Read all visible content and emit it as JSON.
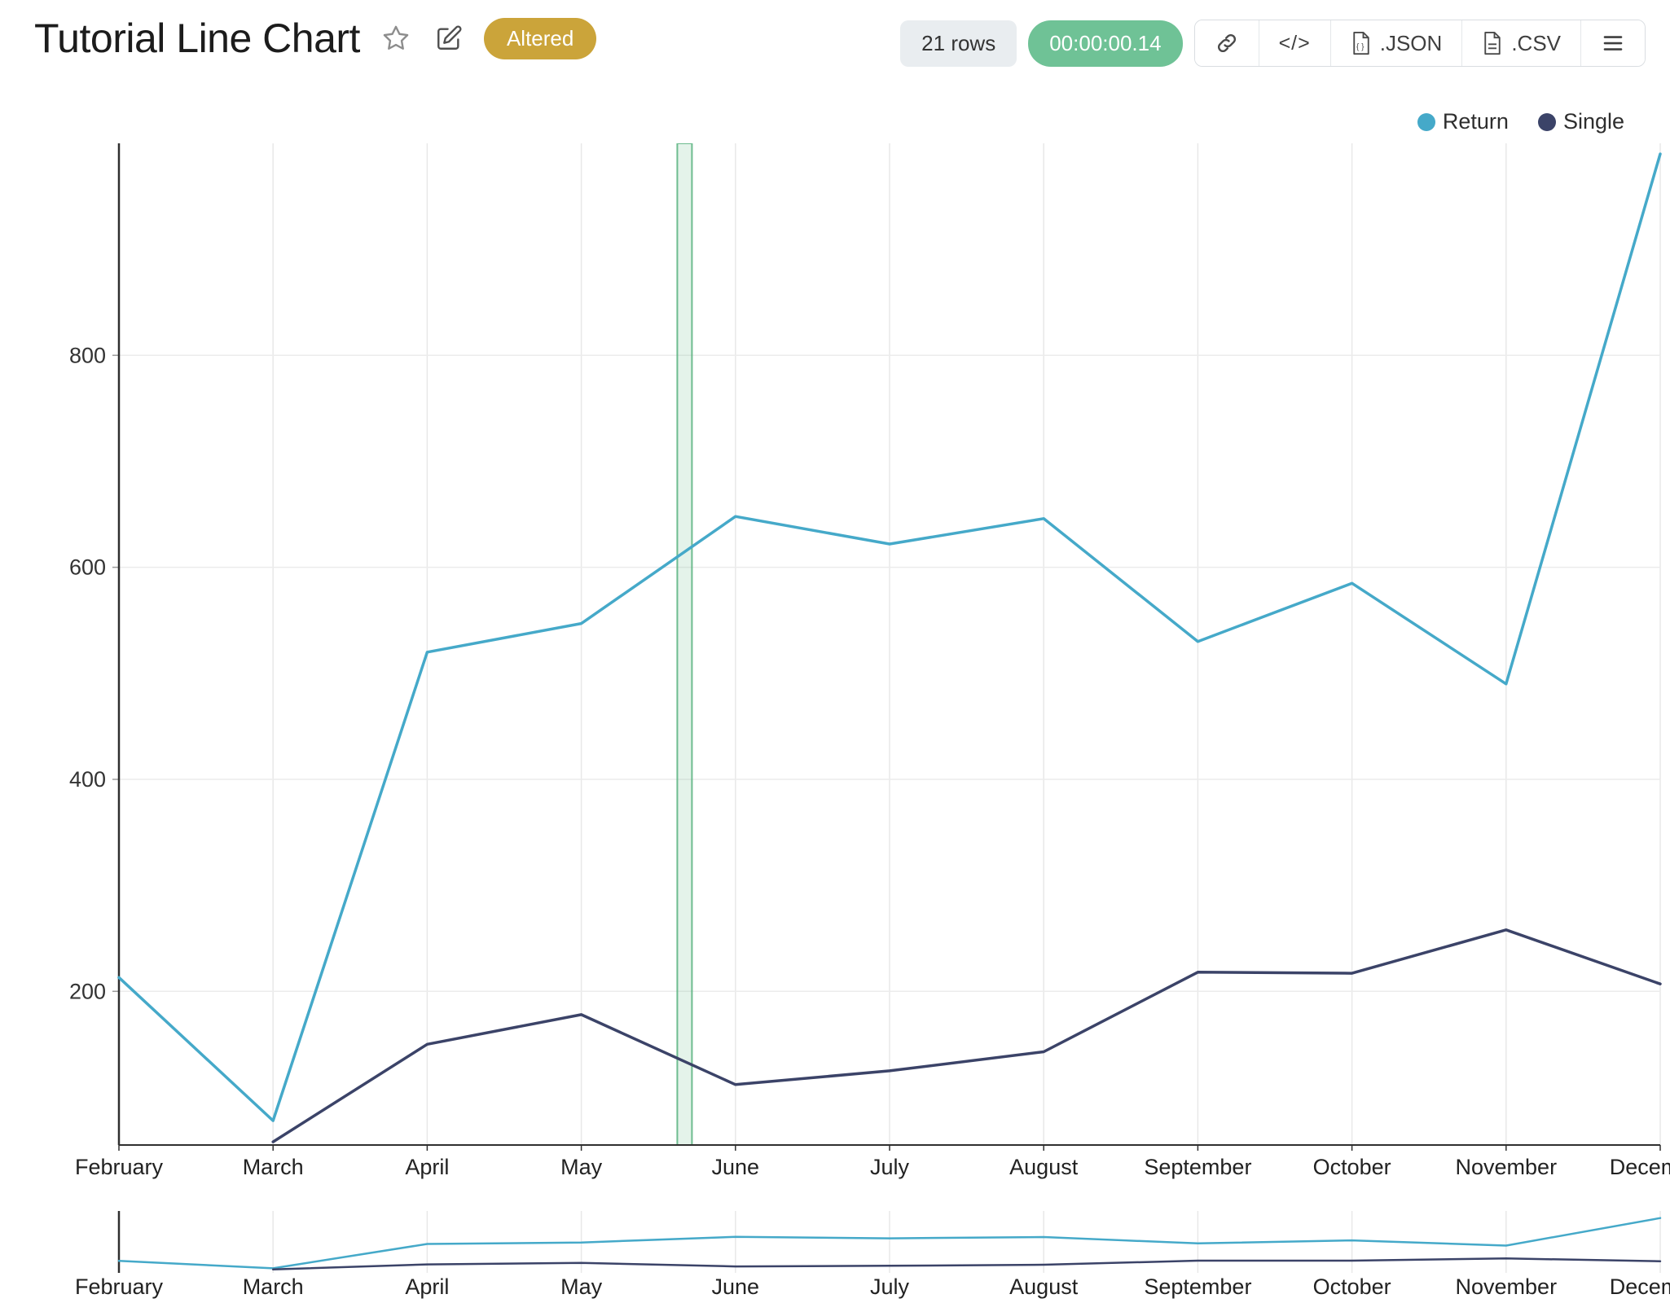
{
  "header": {
    "title": "Tutorial Line Chart",
    "status_badge": "Altered",
    "rows_badge": "21 rows",
    "time_badge": "00:00:00.14",
    "code_label": "</>",
    "export_json_label": ".JSON",
    "export_csv_label": ".CSV"
  },
  "colors": {
    "return_series": "#45a9c9",
    "single_series": "#3b4368",
    "altered_badge": "#cba43a",
    "time_badge": "#6fc296",
    "rows_badge_bg": "#e9edf0",
    "annotation_band": "#57b27e"
  },
  "chart_data": {
    "type": "line",
    "title": "Tutorial Line Chart",
    "categories": [
      "February",
      "March",
      "April",
      "May",
      "June",
      "July",
      "August",
      "September",
      "October",
      "November",
      "December"
    ],
    "series": [
      {
        "name": "Return",
        "color": "#45a9c9",
        "values": [
          213,
          78,
          520,
          547,
          648,
          622,
          646,
          530,
          585,
          490,
          990
        ]
      },
      {
        "name": "Single",
        "color": "#3b4368",
        "values": [
          null,
          58,
          150,
          178,
          112,
          125,
          143,
          218,
          217,
          258,
          207
        ]
      }
    ],
    "y_ticks": [
      200,
      400,
      600,
      800
    ],
    "y_domain": [
      55,
      1000
    ],
    "grid": true,
    "legend_position": "top-right",
    "annotation_band": {
      "between": [
        "May",
        "June"
      ],
      "fraction": 0.67,
      "color": "#57b27e"
    },
    "subchart": true
  }
}
